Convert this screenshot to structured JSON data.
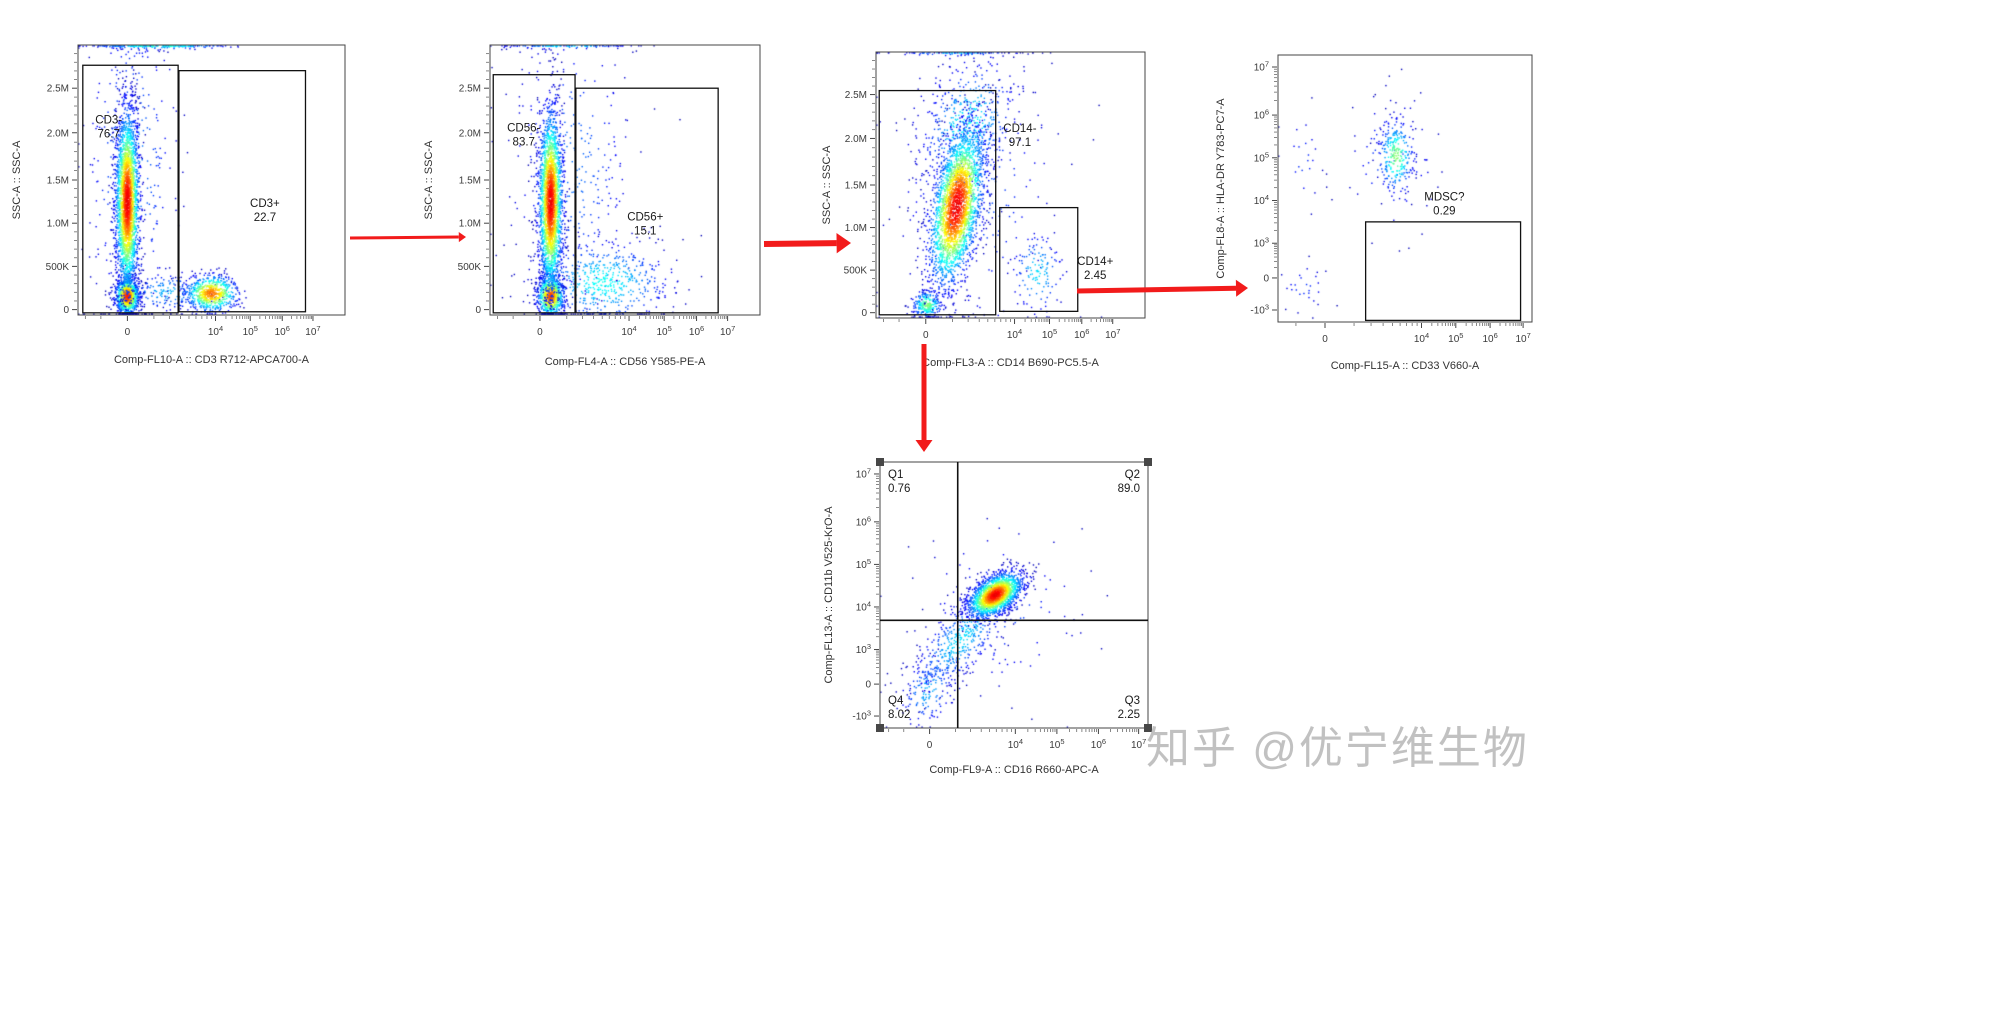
{
  "figure": {
    "background": "#ffffff",
    "arrow_color": "#f21b1b"
  },
  "watermark": {
    "text": "知乎 @优宁维生物",
    "color": "#bcbcbc"
  },
  "chart_data": [
    {
      "id": "cd3",
      "type": "scatter",
      "xlabel": "Comp-FL10-A :: CD3 R712-APCA700-A",
      "ylabel": "SSC-A :: SSC-A",
      "x_ticks": [
        {
          "t": "0",
          "f": 0.185
        },
        {
          "t": "10",
          "s": "4",
          "f": 0.515
        },
        {
          "t": "10",
          "s": "5",
          "f": 0.645
        },
        {
          "t": "10",
          "s": "6",
          "f": 0.765
        },
        {
          "t": "10",
          "s": "7",
          "f": 0.88
        }
      ],
      "y_ticks": [
        {
          "t": "0",
          "f": 0.02
        },
        {
          "t": "500K",
          "f": 0.18
        },
        {
          "t": "1.0M",
          "f": 0.34
        },
        {
          "t": "1.5M",
          "f": 0.5
        },
        {
          "t": "2.0M",
          "f": 0.675
        },
        {
          "t": "2.5M",
          "f": 0.84
        }
      ],
      "gates": [
        {
          "name": "CD3-",
          "percent": "76.7",
          "rect": [
            0.018,
            0.008,
            0.375,
            0.925
          ],
          "label_pos": [
            0.115,
            0.71
          ]
        },
        {
          "name": "CD3+",
          "percent": "22.7",
          "rect": [
            0.378,
            0.012,
            0.852,
            0.905
          ],
          "label_pos": [
            0.7,
            0.4
          ]
        }
      ],
      "populations": [
        {
          "fx": 0.2,
          "fy": 0.55,
          "sx": 0.09,
          "sy": 0.33,
          "n": 350,
          "tmax": 0.25
        },
        {
          "fx": 0.34,
          "fy": 0.085,
          "sx": 0.1,
          "sy": 0.04,
          "n": 200,
          "tmax": 0.3
        },
        {
          "fx": 0.3,
          "fy": 1.0,
          "sx": 0.14,
          "sy": 0.008,
          "n": 220,
          "tmax": 0.5
        },
        {
          "fx": 0.5,
          "fy": 0.08,
          "sx": 0.05,
          "sy": 0.035,
          "n": 650,
          "tmax": 0.85
        },
        {
          "fx": 0.185,
          "fy": 0.07,
          "sx": 0.022,
          "sy": 0.035,
          "n": 1000,
          "tmax": 0.95
        },
        {
          "fx": 0.185,
          "fy": 0.42,
          "sx": 0.022,
          "sy": 0.17,
          "n": 2800,
          "tmax": 1.0
        }
      ]
    },
    {
      "id": "cd56",
      "type": "scatter",
      "xlabel": "Comp-FL4-A :: CD56 Y585-PE-A",
      "ylabel": "SSC-A :: SSC-A",
      "x_ticks": [
        {
          "t": "0",
          "f": 0.185
        },
        {
          "t": "10",
          "s": "4",
          "f": 0.515
        },
        {
          "t": "10",
          "s": "5",
          "f": 0.645
        },
        {
          "t": "10",
          "s": "6",
          "f": 0.765
        },
        {
          "t": "10",
          "s": "7",
          "f": 0.88
        }
      ],
      "y_ticks": [
        {
          "t": "0",
          "f": 0.02
        },
        {
          "t": "500K",
          "f": 0.18
        },
        {
          "t": "1.0M",
          "f": 0.34
        },
        {
          "t": "1.5M",
          "f": 0.5
        },
        {
          "t": "2.0M",
          "f": 0.675
        },
        {
          "t": "2.5M",
          "f": 0.84
        }
      ],
      "gates": [
        {
          "name": "CD56-",
          "percent": "83.7",
          "rect": [
            0.012,
            0.008,
            0.315,
            0.89
          ],
          "label_pos": [
            0.125,
            0.68
          ]
        },
        {
          "name": "CD56+",
          "percent": "15.1",
          "rect": [
            0.318,
            0.008,
            0.845,
            0.84
          ],
          "label_pos": [
            0.575,
            0.35
          ]
        }
      ],
      "populations": [
        {
          "fx": 0.3,
          "fy": 0.55,
          "sx": 0.12,
          "sy": 0.3,
          "n": 300,
          "tmax": 0.22
        },
        {
          "fx": 0.28,
          "fy": 1.0,
          "sx": 0.12,
          "sy": 0.008,
          "n": 120,
          "tmax": 0.4
        },
        {
          "fx": 0.42,
          "fy": 0.12,
          "sx": 0.13,
          "sy": 0.08,
          "n": 550,
          "tmax": 0.4
        },
        {
          "fx": 0.225,
          "fy": 0.07,
          "sx": 0.025,
          "sy": 0.04,
          "n": 800,
          "tmax": 0.9
        },
        {
          "fx": 0.225,
          "fy": 0.42,
          "sx": 0.022,
          "sy": 0.17,
          "n": 2600,
          "tmax": 1.0
        }
      ]
    },
    {
      "id": "cd14",
      "type": "scatter",
      "xlabel": "Comp-FL3-A :: CD14 B690-PC5.5-A",
      "ylabel": "SSC-A :: SSC-A",
      "x_ticks": [
        {
          "t": "0",
          "f": 0.185
        },
        {
          "t": "10",
          "s": "4",
          "f": 0.515
        },
        {
          "t": "10",
          "s": "5",
          "f": 0.645
        },
        {
          "t": "10",
          "s": "6",
          "f": 0.765
        },
        {
          "t": "10",
          "s": "7",
          "f": 0.88
        }
      ],
      "y_ticks": [
        {
          "t": "0",
          "f": 0.02
        },
        {
          "t": "500K",
          "f": 0.18
        },
        {
          "t": "1.0M",
          "f": 0.34
        },
        {
          "t": "1.5M",
          "f": 0.5
        },
        {
          "t": "2.0M",
          "f": 0.675
        },
        {
          "t": "2.5M",
          "f": 0.84
        }
      ],
      "gates": [
        {
          "name": "CD14-",
          "percent": "97.1",
          "rect": [
            0.012,
            0.012,
            0.445,
            0.855
          ],
          "label_pos": [
            0.535,
            0.7
          ]
        },
        {
          "name": "CD14+",
          "percent": "2.45",
          "rect": [
            0.46,
            0.025,
            0.75,
            0.415
          ],
          "label_pos": [
            0.815,
            0.2
          ]
        }
      ],
      "populations": [
        {
          "fx": 0.36,
          "fy": 0.5,
          "sx": 0.16,
          "sy": 0.3,
          "n": 260,
          "tmax": 0.2
        },
        {
          "fx": 0.3,
          "fy": 1.0,
          "sx": 0.12,
          "sy": 0.008,
          "n": 90,
          "tmax": 0.35
        },
        {
          "fx": 0.34,
          "fy": 0.72,
          "sx": 0.09,
          "sy": 0.13,
          "n": 500,
          "tmax": 0.4,
          "rho": 0.3
        },
        {
          "fx": 0.6,
          "fy": 0.17,
          "sx": 0.05,
          "sy": 0.08,
          "n": 130,
          "tmax": 0.35
        },
        {
          "fx": 0.19,
          "fy": 0.05,
          "sx": 0.028,
          "sy": 0.028,
          "n": 250,
          "tmax": 0.55
        },
        {
          "fx": 0.3,
          "fy": 0.42,
          "sx": 0.05,
          "sy": 0.15,
          "n": 2800,
          "tmax": 1.0,
          "rho": 0.45
        }
      ]
    },
    {
      "id": "mdsc",
      "type": "scatter",
      "xlabel": "Comp-FL15-A :: CD33 V660-A",
      "ylabel": "Comp-FL8-A :: HLA-DR Y783-PC7-A",
      "x_ticks": [
        {
          "t": "0",
          "f": 0.185
        },
        {
          "t": "10",
          "s": "4",
          "f": 0.565
        },
        {
          "t": "10",
          "s": "5",
          "f": 0.7
        },
        {
          "t": "10",
          "s": "6",
          "f": 0.835
        },
        {
          "t": "10",
          "s": "7",
          "f": 0.965
        }
      ],
      "y_ticks": [
        {
          "t": "-10",
          "s": "3",
          "f": 0.045
        },
        {
          "t": "0",
          "f": 0.165
        },
        {
          "t": "10",
          "s": "3",
          "f": 0.295
        },
        {
          "t": "10",
          "s": "4",
          "f": 0.455
        },
        {
          "t": "10",
          "s": "5",
          "f": 0.615
        },
        {
          "t": "10",
          "s": "6",
          "f": 0.775
        },
        {
          "t": "10",
          "s": "7",
          "f": 0.955
        }
      ],
      "gates": [
        {
          "name": "MDSC?",
          "percent": "0.29",
          "rect": [
            0.345,
            0.006,
            0.955,
            0.375
          ],
          "label_pos": [
            0.655,
            0.455
          ]
        }
      ],
      "populations": [
        {
          "fx": 0.45,
          "fy": 0.6,
          "sx": 0.09,
          "sy": 0.13,
          "n": 80,
          "tmax": 0.2
        },
        {
          "fx": 0.1,
          "fy": 0.6,
          "sx": 0.04,
          "sy": 0.1,
          "n": 22,
          "tmax": 0.15
        },
        {
          "fx": 0.1,
          "fy": 0.13,
          "sx": 0.05,
          "sy": 0.05,
          "n": 28,
          "tmax": 0.15
        },
        {
          "fx": 0.465,
          "fy": 0.62,
          "sx": 0.035,
          "sy": 0.07,
          "n": 280,
          "tmax": 0.55
        }
      ]
    },
    {
      "id": "quad",
      "type": "scatter",
      "xlabel": "Comp-FL9-A :: CD16 R660-APC-A",
      "ylabel": "Comp-FL13-A :: CD11b V525-KrO-A",
      "x_ticks": [
        {
          "t": "0",
          "f": 0.185
        },
        {
          "t": "10",
          "s": "4",
          "f": 0.505
        },
        {
          "t": "10",
          "s": "5",
          "f": 0.66
        },
        {
          "t": "10",
          "s": "6",
          "f": 0.815
        },
        {
          "t": "10",
          "s": "7",
          "f": 0.965
        }
      ],
      "y_ticks": [
        {
          "t": "-10",
          "s": "3",
          "f": 0.045
        },
        {
          "t": "0",
          "f": 0.165
        },
        {
          "t": "10",
          "s": "3",
          "f": 0.295
        },
        {
          "t": "10",
          "s": "4",
          "f": 0.455
        },
        {
          "t": "10",
          "s": "5",
          "f": 0.615
        },
        {
          "t": "10",
          "s": "6",
          "f": 0.775
        },
        {
          "t": "10",
          "s": "7",
          "f": 0.955
        }
      ],
      "gates": [],
      "quadrants": {
        "x": 0.29,
        "y": 0.405,
        "stats": [
          {
            "name": "Q1",
            "percent": "0.76",
            "corner": "tl"
          },
          {
            "name": "Q2",
            "percent": "89.0",
            "corner": "tr"
          },
          {
            "name": "Q3",
            "percent": "2.25",
            "corner": "br"
          },
          {
            "name": "Q4",
            "percent": "8.02",
            "corner": "bl"
          }
        ]
      },
      "populations": [
        {
          "fx": 0.45,
          "fy": 0.45,
          "sx": 0.16,
          "sy": 0.16,
          "n": 100,
          "tmax": 0.18
        },
        {
          "fx": 0.18,
          "fy": 0.14,
          "sx": 0.055,
          "sy": 0.07,
          "n": 160,
          "tmax": 0.3,
          "rho": 0.3
        },
        {
          "fx": 0.3,
          "fy": 0.33,
          "sx": 0.09,
          "sy": 0.1,
          "n": 450,
          "tmax": 0.35,
          "rho": 0.7
        },
        {
          "fx": 0.43,
          "fy": 0.5,
          "sx": 0.05,
          "sy": 0.042,
          "n": 1900,
          "tmax": 1.0,
          "rho": 0.5
        }
      ]
    }
  ]
}
